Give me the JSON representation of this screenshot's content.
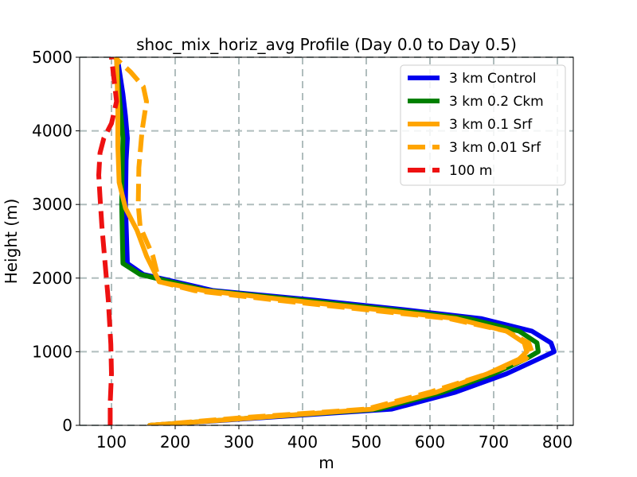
{
  "chart_data": {
    "type": "line",
    "title": "shoc_mix_horiz_avg Profile (Day 0.0 to Day 0.5)",
    "xlabel": "m",
    "ylabel": "Height (m)",
    "xlim": [
      50,
      825
    ],
    "ylim": [
      0,
      5000
    ],
    "xticks": [
      100,
      200,
      300,
      400,
      500,
      600,
      700,
      800
    ],
    "yticks": [
      0,
      1000,
      2000,
      3000,
      4000,
      5000
    ],
    "grid": true,
    "legend_position": "top-right",
    "series": [
      {
        "name": "3 km Control",
        "color": "#0000ee",
        "dash": "solid",
        "x": [
          160,
          330,
          540,
          640,
          720,
          770,
          795,
          790,
          760,
          680,
          560,
          420,
          260,
          150,
          125,
          122,
          123,
          125,
          122,
          118,
          110
        ],
        "y": [
          0,
          100,
          220,
          450,
          700,
          900,
          1000,
          1120,
          1280,
          1450,
          1570,
          1700,
          1830,
          2050,
          2200,
          3000,
          3600,
          3900,
          4200,
          4500,
          4950
        ]
      },
      {
        "name": "3 km 0.2 Ckm",
        "color": "#008000",
        "dash": "solid",
        "x": [
          160,
          320,
          520,
          620,
          700,
          750,
          770,
          768,
          740,
          660,
          540,
          400,
          250,
          145,
          118,
          116,
          117,
          118,
          115,
          112,
          108
        ],
        "y": [
          0,
          100,
          220,
          450,
          700,
          900,
          1000,
          1120,
          1280,
          1450,
          1570,
          1700,
          1830,
          2050,
          2200,
          3000,
          3600,
          3900,
          4200,
          4500,
          4950
        ]
      },
      {
        "name": "3 km 0.1 Srf",
        "color": "#ffa500",
        "dash": "solid",
        "x": [
          160,
          320,
          510,
          610,
          690,
          740,
          752,
          748,
          720,
          640,
          520,
          380,
          245,
          175,
          155,
          140,
          122,
          112,
          110,
          110,
          108
        ],
        "y": [
          0,
          100,
          220,
          450,
          700,
          900,
          1000,
          1120,
          1280,
          1450,
          1570,
          1700,
          1830,
          1950,
          2300,
          2650,
          2950,
          3300,
          3800,
          4300,
          5000
        ]
      },
      {
        "name": "3 km 0.01 Srf",
        "color": "#ffa500",
        "dash": "dashed",
        "x": [
          160,
          300,
          500,
          600,
          690,
          750,
          760,
          755,
          720,
          630,
          500,
          360,
          230,
          175,
          165,
          145,
          142,
          143,
          148,
          155,
          150,
          130,
          105
        ],
        "y": [
          0,
          100,
          220,
          450,
          700,
          900,
          1000,
          1120,
          1280,
          1450,
          1570,
          1700,
          1830,
          1950,
          2300,
          2700,
          3000,
          3500,
          4000,
          4400,
          4600,
          4800,
          5000
        ]
      },
      {
        "name": "100 m",
        "color": "#ee1111",
        "dash": "dashed",
        "x": [
          98,
          98,
          100,
          99,
          95,
          90,
          85,
          82,
          80,
          82,
          88,
          100,
          108,
          104,
          100
        ],
        "y": [
          0,
          300,
          700,
          1100,
          1700,
          2200,
          2700,
          3100,
          3400,
          3700,
          3900,
          4100,
          4400,
          4700,
          5000
        ]
      }
    ]
  }
}
